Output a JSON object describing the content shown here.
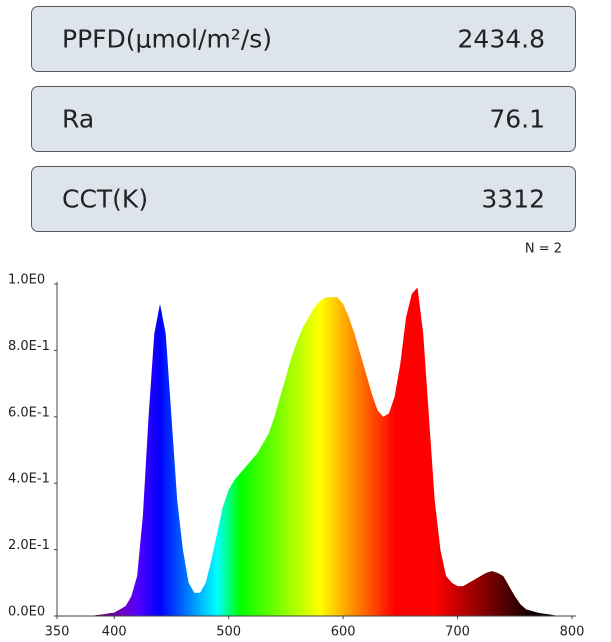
{
  "cards": [
    {
      "label": "PPFD(μmol/m²/s)",
      "value": "2434.8"
    },
    {
      "label": "Ra",
      "value": "76.1"
    },
    {
      "label": "CCT(K)",
      "value": "3312"
    }
  ],
  "chart_data": {
    "type": "area",
    "note": "N = 2",
    "x": [
      380,
      385,
      390,
      395,
      400,
      405,
      410,
      415,
      420,
      425,
      430,
      435,
      440,
      445,
      450,
      455,
      460,
      465,
      470,
      475,
      480,
      485,
      490,
      495,
      500,
      505,
      510,
      515,
      520,
      525,
      530,
      535,
      540,
      545,
      550,
      555,
      560,
      565,
      570,
      575,
      580,
      585,
      590,
      595,
      600,
      605,
      610,
      615,
      620,
      625,
      630,
      635,
      640,
      645,
      650,
      655,
      660,
      665,
      670,
      675,
      680,
      685,
      690,
      695,
      700,
      705,
      710,
      715,
      720,
      725,
      730,
      735,
      740,
      745,
      750,
      755,
      760,
      765,
      770,
      775,
      780,
      785,
      790,
      795,
      800
    ],
    "values": [
      0,
      0.003,
      0.005,
      0.008,
      0.01,
      0.02,
      0.03,
      0.06,
      0.12,
      0.3,
      0.6,
      0.85,
      0.94,
      0.85,
      0.6,
      0.35,
      0.2,
      0.1,
      0.07,
      0.07,
      0.1,
      0.17,
      0.25,
      0.33,
      0.38,
      0.41,
      0.43,
      0.45,
      0.47,
      0.49,
      0.52,
      0.55,
      0.6,
      0.66,
      0.72,
      0.78,
      0.83,
      0.87,
      0.9,
      0.93,
      0.95,
      0.96,
      0.96,
      0.96,
      0.94,
      0.9,
      0.85,
      0.79,
      0.73,
      0.67,
      0.62,
      0.6,
      0.61,
      0.66,
      0.76,
      0.9,
      0.97,
      0.99,
      0.85,
      0.6,
      0.35,
      0.2,
      0.12,
      0.1,
      0.09,
      0.09,
      0.1,
      0.11,
      0.12,
      0.13,
      0.135,
      0.13,
      0.12,
      0.09,
      0.06,
      0.035,
      0.02,
      0.015,
      0.01,
      0.007,
      0.005,
      0.002,
      0,
      0,
      0
    ],
    "xlim": [
      350,
      800
    ],
    "xticks": [
      350,
      400,
      500,
      600,
      700,
      800
    ],
    "ylim": [
      0,
      1
    ],
    "yticks": [
      {
        "value": 0,
        "label": "0.0E0"
      },
      {
        "value": 0.2,
        "label": "2.0E-1"
      },
      {
        "value": 0.4,
        "label": "4.0E-1"
      },
      {
        "value": 0.6,
        "label": "6.0E-1"
      },
      {
        "value": 0.8,
        "label": "8.0E-1"
      },
      {
        "value": 1,
        "label": "1.0E0"
      }
    ]
  }
}
